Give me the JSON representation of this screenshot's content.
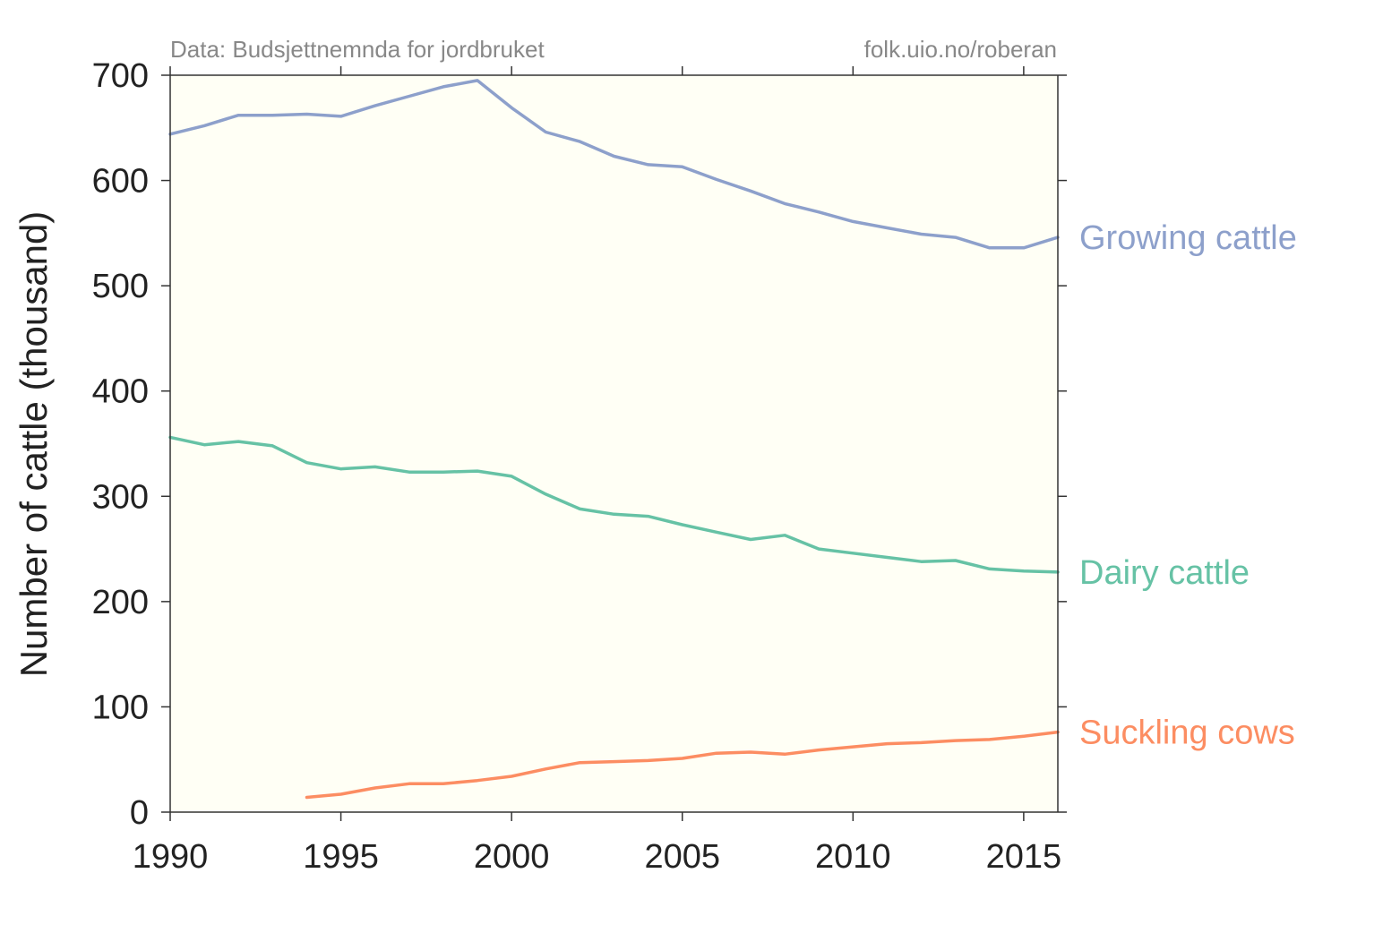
{
  "source_left": "Data: Budsjettnemnda for jordbruket",
  "source_right": "folk.uio.no/roberan",
  "chart_data": {
    "type": "line",
    "title": "",
    "xlabel": "",
    "ylabel": "Number of cattle (thousand)",
    "xlim": [
      1990,
      2016
    ],
    "ylim": [
      0,
      700
    ],
    "xticks": [
      1990,
      1995,
      2000,
      2005,
      2010,
      2015
    ],
    "yticks": [
      0,
      100,
      200,
      300,
      400,
      500,
      600,
      700
    ],
    "plot_background": "#fffff5",
    "grid": false,
    "legend": "labels at right end of each line",
    "series": [
      {
        "name": "Growing cattle",
        "color": "#8da0cb",
        "x": [
          1990,
          1991,
          1992,
          1993,
          1994,
          1995,
          1996,
          1997,
          1998,
          1999,
          2000,
          2001,
          2002,
          2003,
          2004,
          2005,
          2006,
          2007,
          2008,
          2009,
          2010,
          2011,
          2012,
          2013,
          2014,
          2015,
          2016
        ],
        "values": [
          644,
          652,
          662,
          662,
          663,
          661,
          671,
          680,
          689,
          695,
          669,
          646,
          637,
          623,
          615,
          613,
          601,
          590,
          578,
          570,
          561,
          555,
          549,
          546,
          536,
          536,
          546
        ]
      },
      {
        "name": "Dairy cattle",
        "color": "#66c2a5",
        "x": [
          1990,
          1991,
          1992,
          1993,
          1994,
          1995,
          1996,
          1997,
          1998,
          1999,
          2000,
          2001,
          2002,
          2003,
          2004,
          2005,
          2006,
          2007,
          2008,
          2009,
          2010,
          2011,
          2012,
          2013,
          2014,
          2015,
          2016
        ],
        "values": [
          356,
          349,
          352,
          348,
          332,
          326,
          328,
          323,
          323,
          324,
          319,
          302,
          288,
          283,
          281,
          273,
          266,
          259,
          263,
          250,
          246,
          242,
          238,
          239,
          231,
          229,
          228
        ]
      },
      {
        "name": "Suckling cows",
        "color": "#fc8d62",
        "x": [
          1994,
          1995,
          1996,
          1997,
          1998,
          1999,
          2000,
          2001,
          2002,
          2003,
          2004,
          2005,
          2006,
          2007,
          2008,
          2009,
          2010,
          2011,
          2012,
          2013,
          2014,
          2015,
          2016
        ],
        "values": [
          14,
          17,
          23,
          27,
          27,
          30,
          34,
          41,
          47,
          48,
          49,
          51,
          56,
          57,
          55,
          59,
          62,
          65,
          66,
          68,
          69,
          72,
          76
        ]
      }
    ]
  }
}
